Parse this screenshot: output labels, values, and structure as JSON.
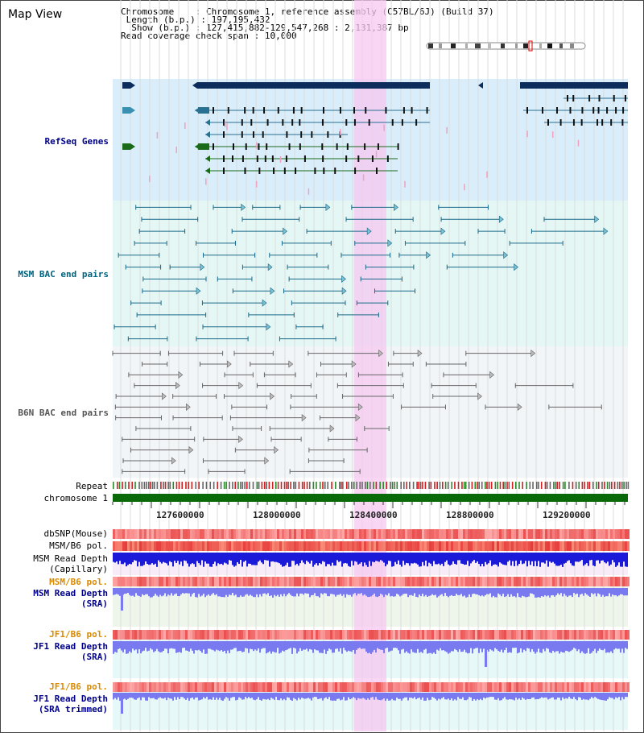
{
  "title": "Map View",
  "header": {
    "line1_label": "Chromosome",
    "line1_value": "Chromosome 1, reference assembly (C57BL/6J) (Build 37)",
    "line2_label": "Length (b.p.)",
    "line2_value": "197,195,432",
    "line3_label": "Show (b.p.)",
    "line3_value": "127,415,882-129,547,268 : 2,131,387 bp",
    "line4_label": "Read coverage check span",
    "line4_value": "10,000"
  },
  "tracks": {
    "refseq": "RefSeq Genes",
    "msm_bac": "MSM BAC end pairs",
    "b6n_bac": "B6N BAC end pairs",
    "repeat": "Repeat",
    "chromosome": "chromosome 1",
    "dbsnp": "dbSNP(Mouse)",
    "msm_b6_pol": "MSM/B6 pol.",
    "msm_depth_cap_1": "MSM Read Depth",
    "msm_depth_cap_2": "(Capillary)",
    "msm_b6_pol_2": "MSM/B6 pol.",
    "msm_depth_sra_1": "MSM Read Depth",
    "msm_depth_sra_2": "(SRA)",
    "jf1_b6_pol": "JF1/B6 pol.",
    "jf1_depth_sra_1": "JF1 Read Depth",
    "jf1_depth_sra_2": "(SRA)",
    "jf1_b6_pol_2": "JF1/B6 pol.",
    "jf1_depth_trim_1": "JF1 Read Depth",
    "jf1_depth_trim_2": "(SRA trimmed)"
  },
  "axis_ticks": [
    "127600000",
    "128000000",
    "128400000",
    "128800000",
    "129200000"
  ],
  "colors": {
    "refseq_bg": "#d9eefa",
    "msm_bg": "#e4f7f5",
    "b6n_bg": "#f2f5f8",
    "highlight": "#f6c8f0",
    "gene_dark": "#0c2c5c",
    "gene_green": "#1a6a1a",
    "msm_line": "#1a6a8a",
    "b6n_line": "#666666",
    "depth_blue": "#1a1ad8",
    "depth_light": "#7a7af0",
    "chrom_green": "#0a6a0a",
    "label_blue": "#00008b",
    "label_teal": "#006480",
    "label_gray": "#555555",
    "label_orange": "#d98a00"
  }
}
